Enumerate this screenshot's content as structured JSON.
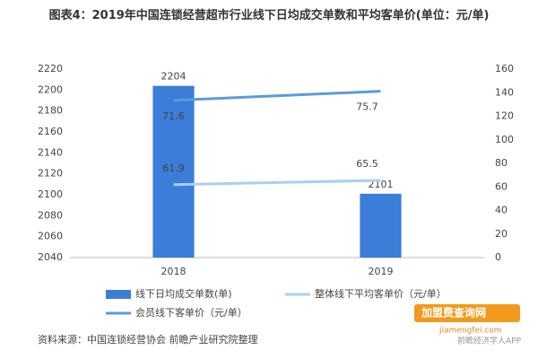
{
  "chart_data": {
    "type": "bar-line",
    "title": "图表4：2019年中国连锁经营超市行业线下日均成交单数和平均客单价(单位：元/单)",
    "categories": [
      "2018",
      "2019"
    ],
    "series": [
      {
        "name": "线下日均成交单数(单)",
        "color": "#3b7dd8",
        "type": "bar",
        "values": [
          2204,
          2101
        ]
      },
      {
        "name": "整体线下平均客单价（元/单）",
        "color": "#a9cff2",
        "type": "line",
        "axis": "y2",
        "values": [
          61.9,
          65.5
        ]
      },
      {
        "name": "会员线下客单价（元/单）",
        "color": "#5b9bdc",
        "type": "line",
        "axis": "y2",
        "stacked": true,
        "values": [
          71.6,
          75.7
        ]
      }
    ],
    "ylim": [
      2040,
      2220
    ],
    "yticks": [
      2040,
      2060,
      2080,
      2100,
      2120,
      2140,
      2160,
      2180,
      2200,
      2220
    ],
    "y2lim": [
      0,
      160
    ],
    "y2ticks": [
      0,
      20,
      40,
      60,
      80,
      100,
      120,
      140,
      160
    ],
    "grid": false,
    "source": "资料来源：中国连锁经营协会 前瞻产业研究院整理",
    "watermark": [
      "加盟费查询网",
      "jiamengfei.com",
      "前瞻经济学人APP"
    ]
  }
}
